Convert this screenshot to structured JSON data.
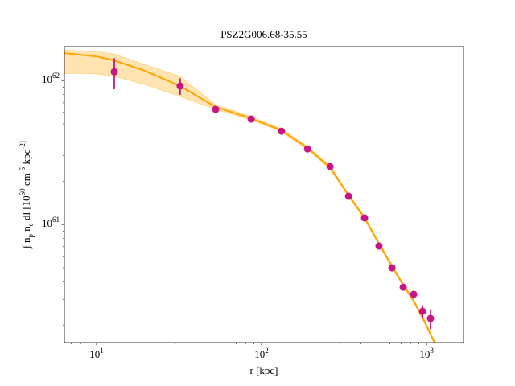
{
  "chart_data": {
    "type": "scatter",
    "title": "PSZ2G006.68-35.55",
    "xlabel": "r [kpc]",
    "ylabel": "∫ n_p n_e dl [10^60 cm^-5 kpc^-2]",
    "xlog": true,
    "ylog": true,
    "xlim": [
      6.38,
      1675
    ],
    "ylim": [
      1.51e+60,
      1.72e+62
    ],
    "xticks": [
      {
        "value": 10,
        "label": "10^1"
      },
      {
        "value": 100,
        "label": "10^2"
      },
      {
        "value": 1000,
        "label": "10^3"
      }
    ],
    "xminor": [
      7,
      8,
      9,
      20,
      30,
      40,
      50,
      60,
      70,
      80,
      90,
      200,
      300,
      400,
      500,
      600,
      700,
      800,
      900
    ],
    "yticks": [
      {
        "value": 1e+61,
        "label": "10^61"
      },
      {
        "value": 1e+62,
        "label": "10^62"
      }
    ],
    "yminor": [
      2e+60,
      3e+60,
      4e+60,
      5e+60,
      6e+60,
      7e+60,
      8e+60,
      9e+60,
      2e+61,
      3e+61,
      4e+61,
      5e+61,
      6e+61,
      7e+61,
      8e+61,
      9e+61
    ],
    "series": [
      {
        "color": "#c71585",
        "x": [
          12.8,
          32.1,
          52.7,
          86.5,
          132,
          190,
          260,
          337,
          421,
          515,
          617,
          722,
          836,
          946,
          1057
        ],
        "values": [
          1.15e+62,
          9.15e+61,
          6.3e+61,
          5.4e+61,
          4.45e+61,
          3.35e+61,
          2.52e+61,
          1.57e+61,
          1.11e+61,
          7.07e+60,
          4.99e+60,
          3.66e+60,
          3.27e+60,
          2.49e+60,
          2.22e+60
        ],
        "errors": [
          2.8e+61,
          1.2e+61,
          2e+60,
          1.5e+60,
          1e+60,
          8e+59,
          6e+59,
          4e+59,
          3e+59,
          2e+59,
          1.5e+59,
          1.2e+59,
          1e+59,
          2.5e+59,
          3.5e+59
        ]
      }
    ],
    "model": {
      "color": "#ffa500",
      "x": [
        6.38,
        7.98,
        10,
        12.8,
        19.6,
        32.1,
        52.7,
        86.5,
        132,
        190,
        260,
        337,
        421,
        515,
        617,
        722,
        836,
        946,
        1119
      ],
      "values": [
        1.55e+62,
        1.51e+62,
        1.47e+62,
        1.38e+62,
        1.17e+62,
        9.15e+61,
        6.55e+61,
        5.46e+61,
        4.51e+61,
        3.4e+61,
        2.49e+61,
        1.59e+61,
        1.11e+61,
        7.35e+60,
        5.12e+60,
        3.81e+60,
        2.94e+60,
        2.25e+60,
        1.51e+60
      ],
      "lower": [
        1.12e+62,
        1.12e+62,
        1.11e+62,
        1.07e+62,
        9.38e+61,
        7.73e+61,
        6.3e+61,
        5.32e+61,
        4.39e+61,
        3.31e+61,
        2.43e+61,
        1.55e+61,
        1.08e+61,
        7.16e+60,
        4.99e+60,
        3.72e+60,
        2.87e+60,
        2.19e+60,
        1.47e+60
      ],
      "upper": [
        1.63e+62,
        1.61e+62,
        1.59e+62,
        1.53e+62,
        1.29e+62,
        1.07e+62,
        6.8e+61,
        5.61e+61,
        4.62e+61,
        3.48e+61,
        2.56e+61,
        1.63e+61,
        1.14e+61,
        7.54e+60,
        5.26e+60,
        3.91e+60,
        3.02e+60,
        2.31e+60,
        1.55e+60
      ]
    }
  }
}
